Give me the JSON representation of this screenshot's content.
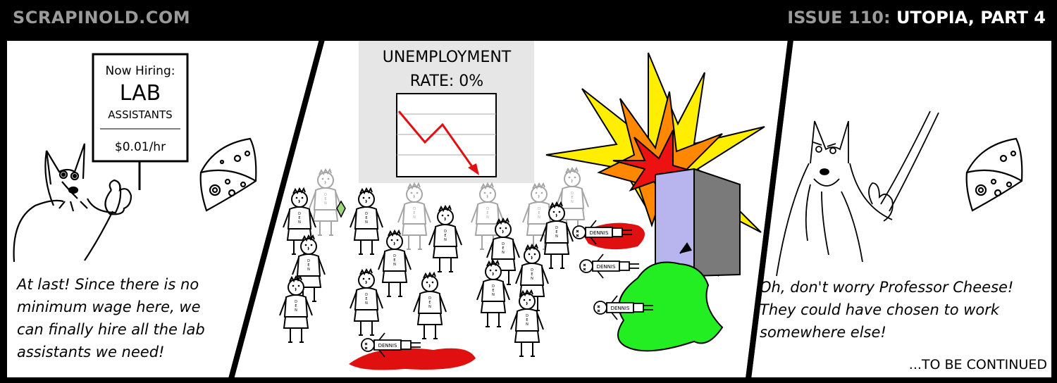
{
  "header": {
    "site": "SCRAPINOLD.COM",
    "issue_label": "ISSUE 110:",
    "issue_title": "UTOPIA, PART 4"
  },
  "panel1": {
    "sign": {
      "line1": "Now Hiring:",
      "line2": "LAB",
      "line3": "ASSISTANTS",
      "wage": "$0.01/hr"
    },
    "caption": "At last! Since there is no minimum wage here, we can finally hire all the lab assistants we need!"
  },
  "panel2": {
    "chart": {
      "title_line1": "UNEMPLOYMENT",
      "title_line2": "RATE: 0%",
      "line_color": "#e01010",
      "background": "#e6e6e6"
    },
    "shirt_text": "DENNIS",
    "blood_color": "#e01010",
    "slime_color": "#22ee22",
    "explosion_colors": [
      "#ffee00",
      "#ff8800",
      "#ee1111"
    ]
  },
  "panel3": {
    "caption": "Oh, don't worry Professor Cheese! They could have chosen to work somewhere else!",
    "footer": "...TO BE CONTINUED"
  }
}
